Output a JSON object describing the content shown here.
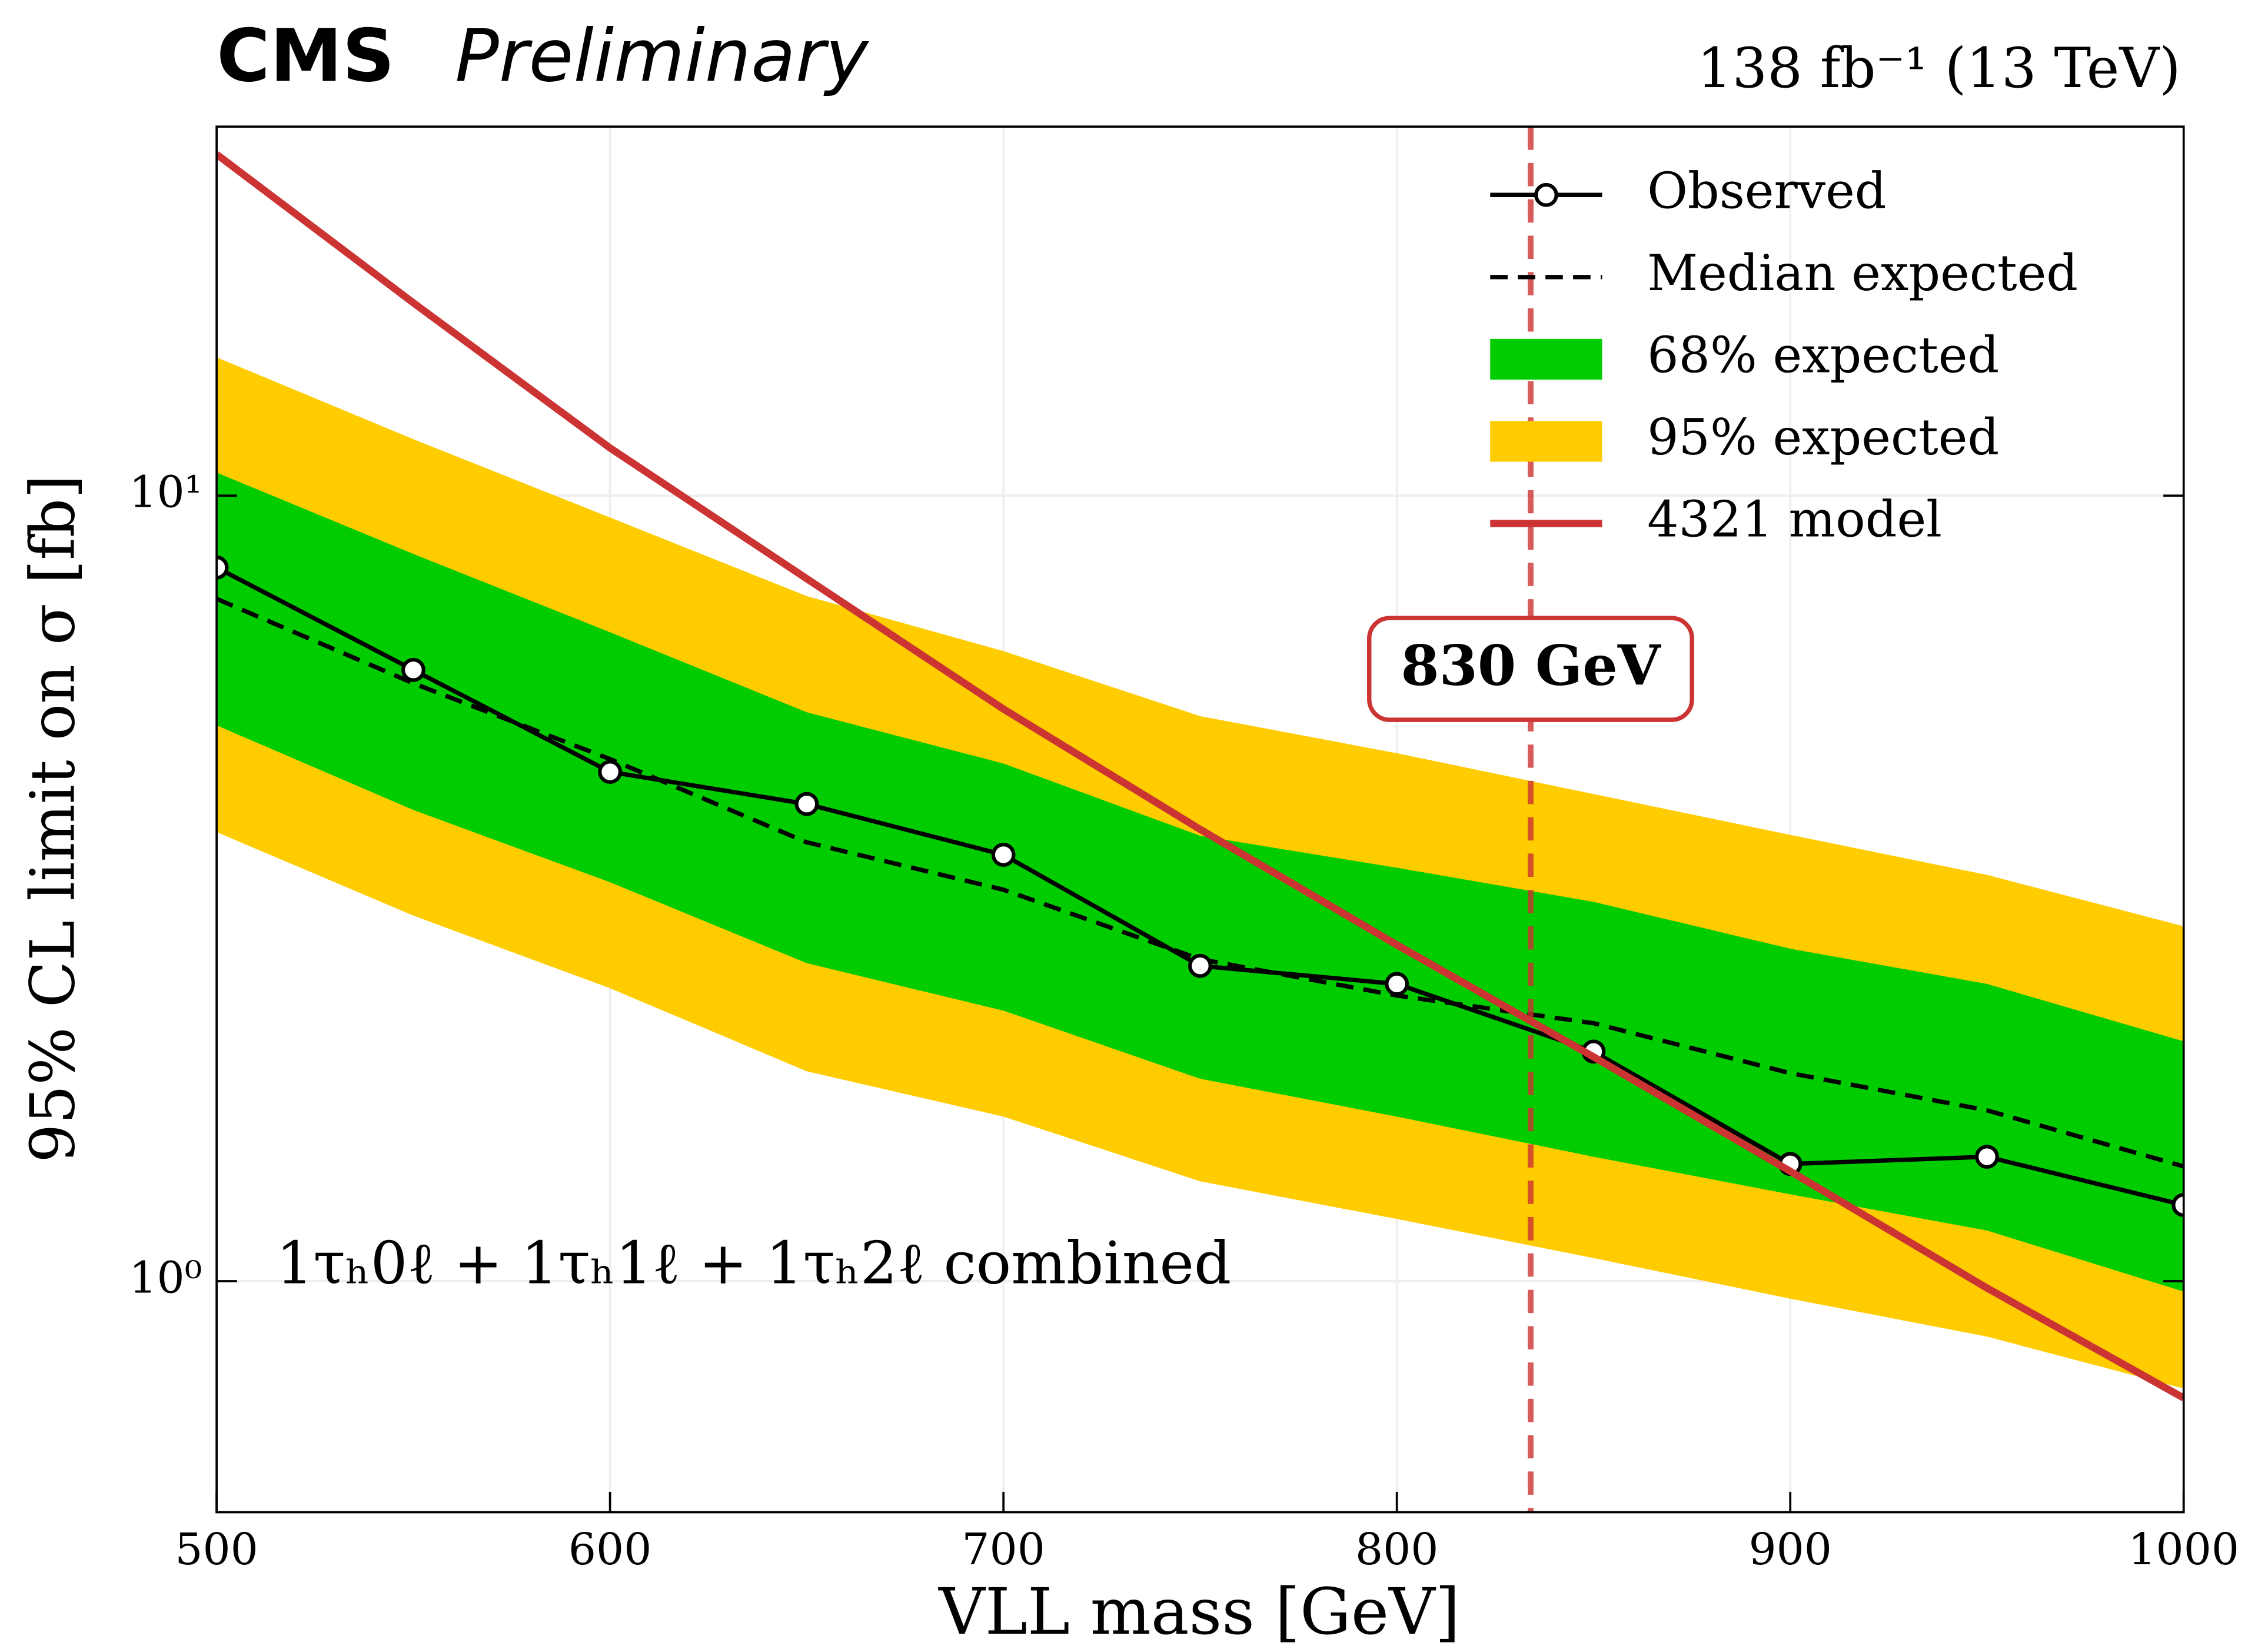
{
  "chart_data": {
    "type": "line",
    "title": "CMS",
    "subtitle": "Preliminary",
    "lumi_label": "138 fb⁻¹ (13 TeV)",
    "xlabel": "VLL mass [GeV]",
    "ylabel": "95% CL limit on σ [fb]",
    "annotation": "1τₕ0ℓ + 1τₕ1ℓ + 1τₕ2ℓ combined",
    "x": [
      500,
      550,
      600,
      650,
      700,
      750,
      800,
      850,
      900,
      950,
      1000
    ],
    "series": [
      {
        "name": "95% expected",
        "color": "#ffcc00",
        "upper": [
          15.0,
          11.8,
          9.38,
          7.45,
          6.34,
          5.24,
          4.7,
          4.17,
          3.7,
          3.29,
          2.83
        ],
        "lower": [
          3.73,
          2.92,
          2.36,
          1.85,
          1.62,
          1.34,
          1.2,
          1.07,
          0.95,
          0.85,
          0.73
        ]
      },
      {
        "name": "68% expected",
        "color": "#00cc00",
        "upper": [
          10.7,
          8.43,
          6.7,
          5.3,
          4.56,
          3.69,
          3.36,
          3.04,
          2.65,
          2.39,
          2.02
        ],
        "lower": [
          5.1,
          3.98,
          3.22,
          2.54,
          2.21,
          1.81,
          1.62,
          1.44,
          1.29,
          1.16,
          0.97
        ]
      },
      {
        "name": "Median expected",
        "color": "#000000",
        "dashed": true,
        "values": [
          7.39,
          5.77,
          4.62,
          3.62,
          3.15,
          2.57,
          2.31,
          2.13,
          1.84,
          1.65,
          1.4
        ]
      },
      {
        "name": "Observed",
        "color": "#000000",
        "markers": true,
        "values": [
          8.1,
          6.0,
          4.45,
          4.05,
          3.49,
          2.52,
          2.39,
          1.96,
          1.41,
          1.44,
          1.25
        ]
      },
      {
        "name": "4321 model",
        "color": "#cc3333",
        "values": [
          27.2,
          17.6,
          11.5,
          7.84,
          5.35,
          3.76,
          2.68,
          1.93,
          1.38,
          0.98,
          0.71
        ]
      }
    ],
    "legend_order": [
      3,
      2,
      1,
      0,
      4
    ],
    "vline": {
      "x": 834,
      "label": "830 GeV",
      "color": "#cc3333"
    },
    "xlim": [
      500,
      1000
    ],
    "ylim": [
      0.508,
      29.5
    ],
    "xticks": [
      500,
      600,
      700,
      800,
      900,
      1000
    ],
    "yticks": [
      {
        "value": 1,
        "label": "10⁰"
      },
      {
        "value": 10,
        "label": "10¹"
      }
    ],
    "log_y": true,
    "grid": true,
    "legend": "upper right"
  }
}
